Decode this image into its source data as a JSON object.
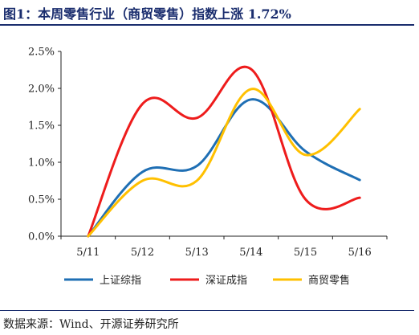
{
  "title": "图1：本周零售行业（商贸零售）指数上涨 1.72%",
  "source": "数据来源：Wind、开源证券研究所",
  "chart_data": {
    "type": "line",
    "categories": [
      "5/11",
      "5/12",
      "5/13",
      "5/14",
      "5/15",
      "5/16"
    ],
    "y_ticks": [
      "0.0%",
      "0.5%",
      "1.0%",
      "1.5%",
      "2.0%",
      "2.5%"
    ],
    "ylim": [
      0,
      2.5
    ],
    "grid": false,
    "legend_position": "bottom",
    "series": [
      {
        "name": "上证综指",
        "color": "#1f6fb4",
        "values": [
          0,
          0.87,
          0.95,
          1.85,
          1.15,
          0.76
        ]
      },
      {
        "name": "深证成指",
        "color": "#ee1c1c",
        "values": [
          0,
          1.79,
          1.6,
          2.26,
          0.5,
          0.52
        ]
      },
      {
        "name": "商贸零售",
        "color": "#ffc000",
        "values": [
          0,
          0.75,
          0.75,
          1.99,
          1.1,
          1.72
        ]
      }
    ]
  }
}
